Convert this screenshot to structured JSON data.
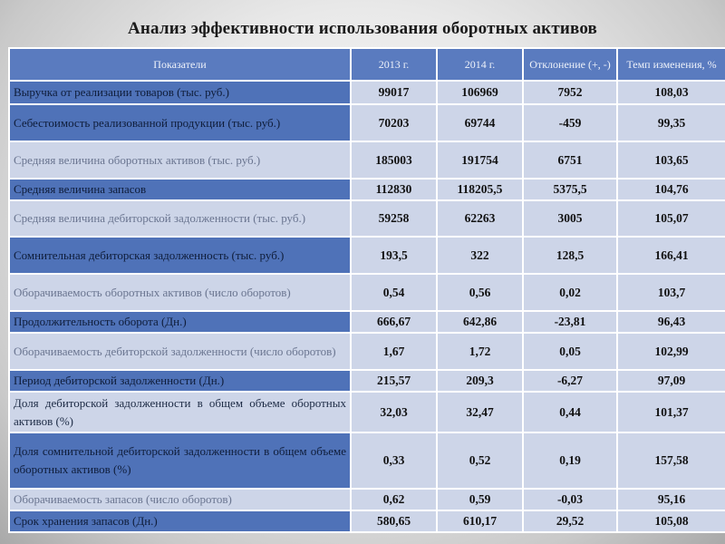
{
  "title": "Анализ эффективности использования оборотных активов",
  "table": {
    "headers": [
      "Показатели",
      "2013 г.",
      "2014 г.",
      "Отклонение (+, -)",
      "Темп изменения, %"
    ],
    "rows": [
      {
        "label": "Выручка от реализации товаров (тыс. руб.)",
        "v2013": "99017",
        "v2014": "106969",
        "dev": "7952",
        "rate": "108,03"
      },
      {
        "label": "Себестоимость реализованной продукции (тыс. руб.)",
        "v2013": "70203",
        "v2014": "69744",
        "dev": "-459",
        "rate": "99,35"
      },
      {
        "label": "Средняя величина оборотных активов (тыс. руб.)",
        "v2013": "185003",
        "v2014": "191754",
        "dev": "6751",
        "rate": "103,65"
      },
      {
        "label": "Средняя величина запасов",
        "v2013": "112830",
        "v2014": "118205,5",
        "dev": "5375,5",
        "rate": "104,76"
      },
      {
        "label": "Средняя величина дебиторской задолженности (тыс. руб.)",
        "v2013": "59258",
        "v2014": "62263",
        "dev": "3005",
        "rate": "105,07"
      },
      {
        "label": "Сомнительная дебиторская задолженность (тыс. руб.)",
        "v2013": "193,5",
        "v2014": "322",
        "dev": "128,5",
        "rate": "166,41"
      },
      {
        "label": "Оборачиваемость оборотных активов (число оборотов)",
        "v2013": "0,54",
        "v2014": "0,56",
        "dev": "0,02",
        "rate": "103,7"
      },
      {
        "label": "Продолжительность оборота (Дн.)",
        "v2013": "666,67",
        "v2014": "642,86",
        "dev": "-23,81",
        "rate": "96,43"
      },
      {
        "label": "Оборачиваемость дебиторской задолженности (число оборотов)",
        "v2013": "1,67",
        "v2014": "1,72",
        "dev": "0,05",
        "rate": "102,99"
      },
      {
        "label": "Период дебиторской задолженности (Дн.)",
        "v2013": "215,57",
        "v2014": "209,3",
        "dev": "-6,27",
        "rate": "97,09"
      },
      {
        "label": "Доля дебиторской задолженности в общем объеме оборотных активов (%)",
        "v2013": "32,03",
        "v2014": "32,47",
        "dev": "0,44",
        "rate": "101,37"
      },
      {
        "label": "Доля сомнительной дебиторской задолженности в общем объеме оборотных активов (%)",
        "v2013": "0,33",
        "v2014": "0,52",
        "dev": "0,19",
        "rate": "157,58"
      },
      {
        "label": "Оборачиваемость запасов (число оборотов)",
        "v2013": "0,62",
        "v2014": "0,59",
        "dev": "-0,03",
        "rate": "95,16"
      },
      {
        "label": "Срок хранения запасов (Дн.)",
        "v2013": "580,65",
        "v2014": "610,17",
        "dev": "29,52",
        "rate": "105,08"
      }
    ]
  }
}
